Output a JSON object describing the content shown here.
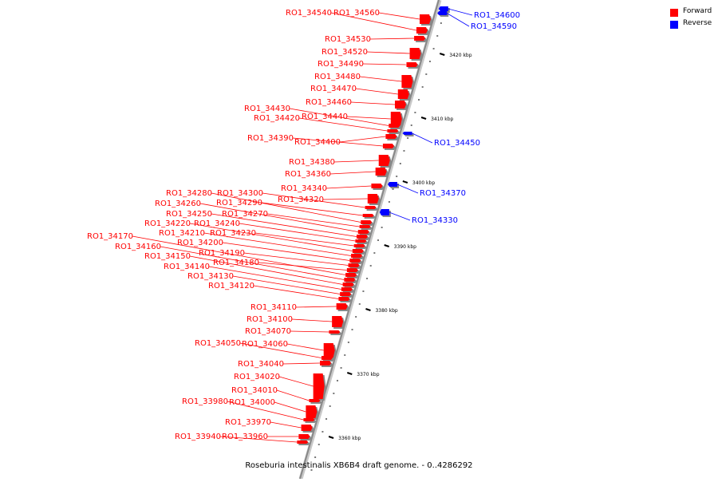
{
  "caption": "Roseburia intestinalis XB6B4 draft genome. - 0..4286292",
  "legend": [
    {
      "label": "Forward",
      "color": "#ff0000"
    },
    {
      "label": "Reverse",
      "color": "#0000ff"
    }
  ],
  "scale_ticks": [
    "3420 kbp",
    "3410 kbp",
    "3400 kbp",
    "3390 kbp",
    "3380 kbp",
    "3370 kbp",
    "3360 kbp"
  ],
  "genes": [
    {
      "name": "RO1_34600",
      "strand": "reverse"
    },
    {
      "name": "RO1_34590",
      "strand": "reverse"
    },
    {
      "name": "RO1_34560",
      "strand": "forward"
    },
    {
      "name": "RO1_34540",
      "strand": "forward"
    },
    {
      "name": "RO1_34530",
      "strand": "forward"
    },
    {
      "name": "RO1_34520",
      "strand": "forward"
    },
    {
      "name": "RO1_34490",
      "strand": "forward"
    },
    {
      "name": "RO1_34480",
      "strand": "forward"
    },
    {
      "name": "RO1_34470",
      "strand": "forward"
    },
    {
      "name": "RO1_34460",
      "strand": "forward"
    },
    {
      "name": "RO1_34450",
      "strand": "reverse"
    },
    {
      "name": "RO1_34440",
      "strand": "forward"
    },
    {
      "name": "RO1_34430",
      "strand": "forward"
    },
    {
      "name": "RO1_34420",
      "strand": "forward"
    },
    {
      "name": "RO1_34400",
      "strand": "forward"
    },
    {
      "name": "RO1_34390",
      "strand": "forward"
    },
    {
      "name": "RO1_34380",
      "strand": "forward"
    },
    {
      "name": "RO1_34370",
      "strand": "reverse"
    },
    {
      "name": "RO1_34360",
      "strand": "forward"
    },
    {
      "name": "RO1_34340",
      "strand": "forward"
    },
    {
      "name": "RO1_34330",
      "strand": "reverse"
    },
    {
      "name": "RO1_34320",
      "strand": "forward"
    },
    {
      "name": "RO1_34300",
      "strand": "forward"
    },
    {
      "name": "RO1_34290",
      "strand": "forward"
    },
    {
      "name": "RO1_34280",
      "strand": "forward"
    },
    {
      "name": "RO1_34270",
      "strand": "forward"
    },
    {
      "name": "RO1_34260",
      "strand": "forward"
    },
    {
      "name": "RO1_34250",
      "strand": "forward"
    },
    {
      "name": "RO1_34240",
      "strand": "forward"
    },
    {
      "name": "RO1_34230",
      "strand": "forward"
    },
    {
      "name": "RO1_34220",
      "strand": "forward"
    },
    {
      "name": "RO1_34210",
      "strand": "forward"
    },
    {
      "name": "RO1_34200",
      "strand": "forward"
    },
    {
      "name": "RO1_34190",
      "strand": "forward"
    },
    {
      "name": "RO1_34180",
      "strand": "forward"
    },
    {
      "name": "RO1_34170",
      "strand": "forward"
    },
    {
      "name": "RO1_34160",
      "strand": "forward"
    },
    {
      "name": "RO1_34150",
      "strand": "forward"
    },
    {
      "name": "RO1_34140",
      "strand": "forward"
    },
    {
      "name": "RO1_34130",
      "strand": "forward"
    },
    {
      "name": "RO1_34120",
      "strand": "forward"
    },
    {
      "name": "RO1_34110",
      "strand": "forward"
    },
    {
      "name": "RO1_34100",
      "strand": "forward"
    },
    {
      "name": "RO1_34070",
      "strand": "forward"
    },
    {
      "name": "RO1_34060",
      "strand": "forward"
    },
    {
      "name": "RO1_34050",
      "strand": "forward"
    },
    {
      "name": "RO1_34040",
      "strand": "forward"
    },
    {
      "name": "RO1_34020",
      "strand": "forward"
    },
    {
      "name": "RO1_34010",
      "strand": "forward"
    },
    {
      "name": "RO1_34000",
      "strand": "forward"
    },
    {
      "name": "RO1_33980",
      "strand": "forward"
    },
    {
      "name": "RO1_33970",
      "strand": "forward"
    },
    {
      "name": "RO1_33960",
      "strand": "forward"
    },
    {
      "name": "RO1_33940",
      "strand": "forward"
    }
  ]
}
